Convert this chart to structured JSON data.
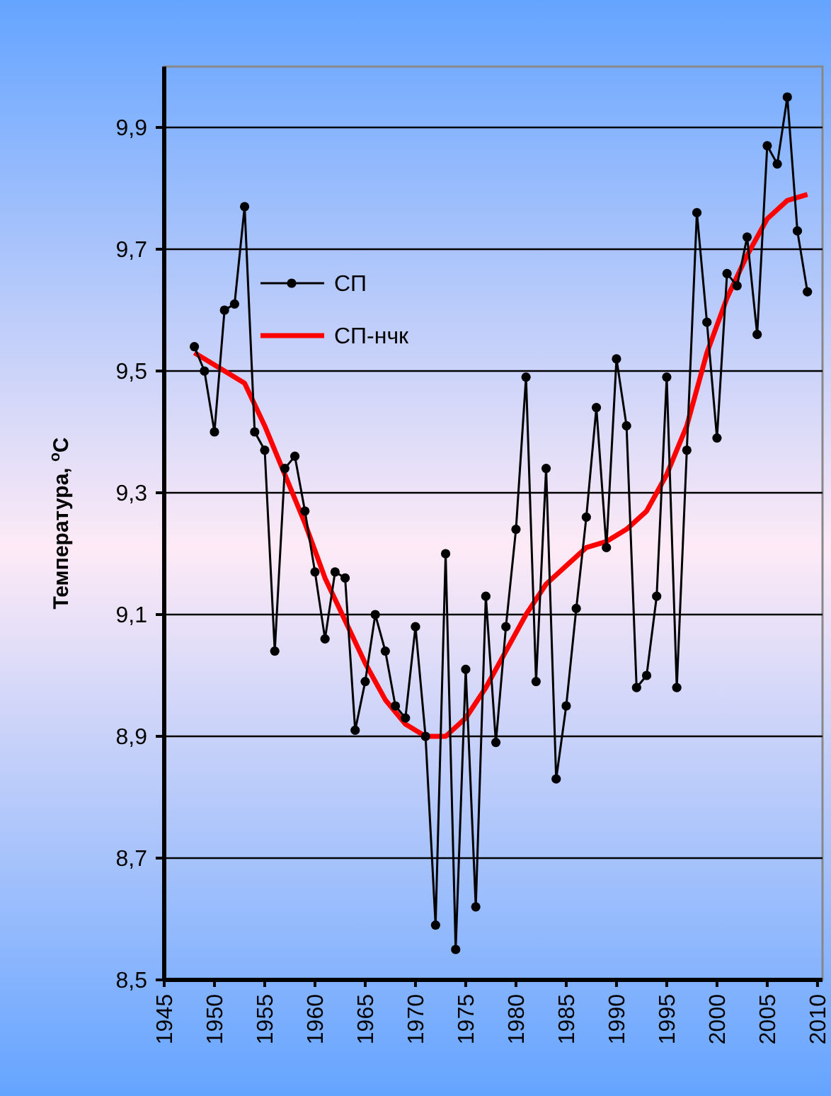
{
  "chart_data": {
    "type": "line",
    "ylabel": "Температура, $^{o}$C",
    "xlim": [
      1945,
      2010.5
    ],
    "xticks": [
      1945,
      1950,
      1955,
      1960,
      1965,
      1970,
      1975,
      1980,
      1985,
      1990,
      1995,
      2000,
      2005,
      2010
    ],
    "ylim": [
      8.5,
      10.0
    ],
    "yticks": [
      {
        "value": 8.5,
        "label": "8,5"
      },
      {
        "value": 8.7,
        "label": "8,7"
      },
      {
        "value": 8.9,
        "label": "8,9"
      },
      {
        "value": 9.1,
        "label": "9,1"
      },
      {
        "value": 9.3,
        "label": "9,3"
      },
      {
        "value": 9.5,
        "label": "9,5"
      },
      {
        "value": 9.7,
        "label": "9,7"
      },
      {
        "value": 9.9,
        "label": "9,9"
      }
    ],
    "grid": "y",
    "legend": "top left",
    "series": [
      {
        "name": "СП",
        "color": "#000000",
        "marker": "circle",
        "x": [
          1948,
          1949,
          1950,
          1951,
          1952,
          1953,
          1954,
          1955,
          1956,
          1957,
          1958,
          1959,
          1960,
          1961,
          1962,
          1963,
          1964,
          1965,
          1966,
          1967,
          1968,
          1969,
          1970,
          1971,
          1972,
          1973,
          1974,
          1975,
          1976,
          1977,
          1978,
          1979,
          1980,
          1981,
          1982,
          1983,
          1984,
          1985,
          1986,
          1987,
          1988,
          1989,
          1990,
          1991,
          1992,
          1993,
          1994,
          1995,
          1996,
          1997,
          1998,
          1999,
          2000,
          2001,
          2002,
          2003,
          2004,
          2005,
          2006,
          2007,
          2008,
          2009
        ],
        "values": [
          9.54,
          9.5,
          9.4,
          9.6,
          9.61,
          9.77,
          9.4,
          9.37,
          9.04,
          9.34,
          9.36,
          9.27,
          9.17,
          9.06,
          9.17,
          9.16,
          8.91,
          8.99,
          9.1,
          9.04,
          8.95,
          8.93,
          9.08,
          8.9,
          8.59,
          9.2,
          8.55,
          9.01,
          8.62,
          9.13,
          8.89,
          9.08,
          9.24,
          9.49,
          8.99,
          9.34,
          8.83,
          8.95,
          9.11,
          9.26,
          9.44,
          9.21,
          9.52,
          9.41,
          8.98,
          9.0,
          9.13,
          9.49,
          8.98,
          9.37,
          9.76,
          9.58,
          9.39,
          9.66,
          9.64,
          9.72,
          9.56,
          9.87,
          9.84,
          9.95,
          9.73,
          9.63
        ]
      },
      {
        "name": "СП-нчк",
        "color": "#ff0000",
        "marker": "none",
        "x": [
          1948,
          1951,
          1953,
          1955,
          1957,
          1959,
          1961,
          1963,
          1965,
          1967,
          1969,
          1971,
          1973,
          1975,
          1977,
          1979,
          1981,
          1983,
          1985,
          1987,
          1989,
          1991,
          1993,
          1995,
          1997,
          1999,
          2001,
          2003,
          2005,
          2007,
          2009
        ],
        "values": [
          9.53,
          9.5,
          9.48,
          9.41,
          9.33,
          9.25,
          9.16,
          9.09,
          9.02,
          8.96,
          8.92,
          8.9,
          8.9,
          8.93,
          8.98,
          9.04,
          9.1,
          9.15,
          9.18,
          9.21,
          9.22,
          9.24,
          9.27,
          9.33,
          9.41,
          9.53,
          9.62,
          9.69,
          9.75,
          9.78,
          9.79
        ]
      }
    ]
  }
}
